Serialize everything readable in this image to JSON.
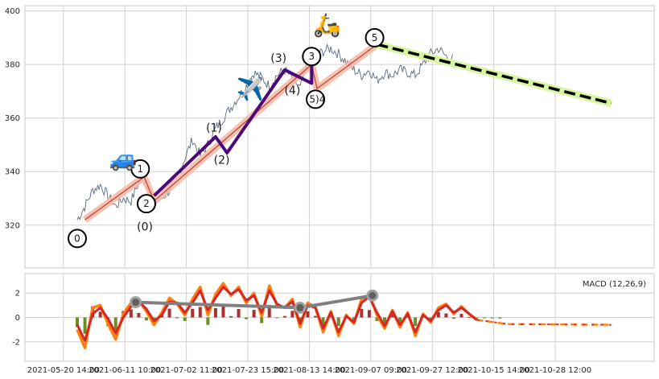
{
  "chart_data": [
    {
      "type": "line",
      "title": "",
      "xlabel": "",
      "ylabel": "",
      "ylim": [
        304,
        402
      ],
      "yticks": [
        320,
        340,
        360,
        380,
        400
      ],
      "grid": true,
      "price": [
        [
          0,
          322
        ],
        [
          1,
          327
        ],
        [
          2,
          333
        ],
        [
          3,
          335
        ],
        [
          4,
          331
        ],
        [
          5,
          327
        ],
        [
          6,
          330
        ],
        [
          7,
          329
        ],
        [
          8,
          336
        ],
        [
          9,
          337
        ],
        [
          10,
          328
        ],
        [
          11,
          330
        ],
        [
          12,
          333
        ],
        [
          13,
          338
        ],
        [
          14,
          345
        ],
        [
          15,
          352
        ],
        [
          16,
          346
        ],
        [
          17,
          350
        ],
        [
          18,
          356
        ],
        [
          19,
          360
        ],
        [
          20,
          364
        ],
        [
          21,
          368
        ],
        [
          22,
          372
        ],
        [
          23,
          377
        ],
        [
          24,
          375
        ],
        [
          25,
          372
        ],
        [
          26,
          376
        ],
        [
          27,
          378
        ],
        [
          28,
          375
        ],
        [
          29,
          371
        ],
        [
          30,
          380
        ],
        [
          31,
          383
        ],
        [
          32,
          385
        ],
        [
          33,
          386
        ],
        [
          34,
          384
        ],
        [
          35,
          381
        ],
        [
          36,
          378
        ],
        [
          37,
          376
        ],
        [
          38,
          378
        ],
        [
          39,
          374
        ],
        [
          40,
          377
        ],
        [
          41,
          376
        ],
        [
          42,
          378
        ],
        [
          43,
          377
        ],
        [
          44,
          376
        ],
        [
          45,
          380
        ],
        [
          46,
          384
        ],
        [
          47,
          386
        ],
        [
          48,
          383
        ],
        [
          49,
          382
        ]
      ],
      "wave_points": [
        {
          "label": "0",
          "x": 1.0,
          "y": 322
        },
        {
          "label": "1",
          "x": 8.7,
          "y": 338
        },
        {
          "label": "2",
          "x": 10.0,
          "y": 329
        },
        {
          "label": "3",
          "x": 30.5,
          "y": 380
        },
        {
          "label": "4",
          "x": 31.2,
          "y": 371
        },
        {
          "label": "5",
          "x": 39.0,
          "y": 387.5
        }
      ],
      "wave_circle_labels": [
        {
          "label": "0",
          "x": 0.0,
          "y": 315
        },
        {
          "label": "1",
          "x": 8.2,
          "y": 341
        },
        {
          "label": "2",
          "x": 9.0,
          "y": 328
        },
        {
          "label": "3",
          "x": 30.5,
          "y": 383
        },
        {
          "label": "(5)4",
          "x": 31.0,
          "y": 367
        },
        {
          "label": "5",
          "x": 38.7,
          "y": 390
        }
      ],
      "subwave_path": [
        [
          10.0,
          331
        ],
        [
          18.0,
          353
        ],
        [
          19.5,
          347
        ],
        [
          27.0,
          378
        ],
        [
          30.5,
          373
        ],
        [
          30.5,
          380
        ]
      ],
      "subwave_labels": [
        {
          "label": "(0)",
          "x": 8.8,
          "y": 318
        },
        {
          "label": "(1)",
          "x": 17.8,
          "y": 355
        },
        {
          "label": "(2)",
          "x": 18.8,
          "y": 343
        },
        {
          "label": "(3)",
          "x": 26.2,
          "y": 381
        },
        {
          "label": "(4)",
          "x": 28.0,
          "y": 369
        }
      ],
      "forecast_line": [
        [
          39.0,
          387.5
        ],
        [
          69.5,
          365.5
        ]
      ],
      "icons": [
        {
          "name": "car-icon",
          "glyph": "🚙",
          "x": 6.0,
          "y": 342
        },
        {
          "name": "airplane-icon",
          "glyph": "✈️",
          "x": 22.5,
          "y": 368
        },
        {
          "name": "scooter-icon",
          "glyph": "🛵",
          "x": 32.5,
          "y": 392
        }
      ]
    },
    {
      "type": "line",
      "title": "",
      "legend": "MACD (12,26,9)",
      "legend_placement": "top-right",
      "ylim": [
        -3.6,
        3.6
      ],
      "yticks": [
        -2,
        0,
        2
      ],
      "grid": true,
      "macd": [
        [
          0,
          -1.0
        ],
        [
          1,
          -2.5
        ],
        [
          2,
          0.8
        ],
        [
          3,
          1.0
        ],
        [
          4,
          -0.5
        ],
        [
          5,
          -1.8
        ],
        [
          6,
          0.3
        ],
        [
          7,
          1.2
        ],
        [
          8,
          1.4
        ],
        [
          9,
          0.5
        ],
        [
          10,
          -0.6
        ],
        [
          11,
          0.4
        ],
        [
          12,
          1.6
        ],
        [
          13,
          1.1
        ],
        [
          14,
          0.2
        ],
        [
          15,
          1.5
        ],
        [
          16,
          2.5
        ],
        [
          17,
          0.2
        ],
        [
          18,
          1.9
        ],
        [
          19,
          2.8
        ],
        [
          20,
          1.8
        ],
        [
          21,
          2.5
        ],
        [
          22,
          1.2
        ],
        [
          23,
          2.0
        ],
        [
          24,
          0.1
        ],
        [
          25,
          2.6
        ],
        [
          26,
          1.0
        ],
        [
          27,
          0.8
        ],
        [
          28,
          1.5
        ],
        [
          29,
          -0.8
        ],
        [
          30,
          1.2
        ],
        [
          31,
          0.8
        ],
        [
          32,
          -1.2
        ],
        [
          33,
          0.5
        ],
        [
          34,
          -1.5
        ],
        [
          35,
          0.2
        ],
        [
          36,
          -0.5
        ],
        [
          37,
          1.5
        ],
        [
          38,
          1.9
        ],
        [
          39,
          0.2
        ],
        [
          40,
          -0.9
        ],
        [
          41,
          0.6
        ],
        [
          42,
          -0.8
        ],
        [
          43,
          0.4
        ],
        [
          44,
          -1.5
        ],
        [
          45,
          0.3
        ],
        [
          46,
          -0.4
        ],
        [
          47,
          0.8
        ],
        [
          48,
          1.1
        ],
        [
          49,
          0.3
        ],
        [
          50,
          0.9
        ],
        [
          51,
          0.3
        ],
        [
          52,
          -0.2
        ],
        [
          53,
          -0.4
        ],
        [
          54,
          -0.5
        ],
        [
          55,
          -0.6
        ]
      ],
      "signal": [
        [
          0,
          -0.6
        ],
        [
          1,
          -1.9
        ],
        [
          2,
          0.3
        ],
        [
          3,
          0.8
        ],
        [
          4,
          -0.1
        ],
        [
          5,
          -1.3
        ],
        [
          6,
          0.0
        ],
        [
          7,
          0.9
        ],
        [
          8,
          1.3
        ],
        [
          9,
          0.7
        ],
        [
          10,
          -0.3
        ],
        [
          11,
          0.2
        ],
        [
          12,
          1.3
        ],
        [
          13,
          1.2
        ],
        [
          14,
          0.4
        ],
        [
          15,
          1.2
        ],
        [
          16,
          2.2
        ],
        [
          17,
          0.6
        ],
        [
          18,
          1.6
        ],
        [
          19,
          2.5
        ],
        [
          20,
          1.9
        ],
        [
          21,
          2.3
        ],
        [
          22,
          1.4
        ],
        [
          23,
          1.8
        ],
        [
          24,
          0.4
        ],
        [
          25,
          2.2
        ],
        [
          26,
          1.1
        ],
        [
          27,
          0.8
        ],
        [
          28,
          1.3
        ],
        [
          29,
          -0.5
        ],
        [
          30,
          1.0
        ],
        [
          31,
          0.8
        ],
        [
          32,
          -0.9
        ],
        [
          33,
          0.4
        ],
        [
          34,
          -1.2
        ],
        [
          35,
          0.1
        ],
        [
          36,
          -0.4
        ],
        [
          37,
          1.2
        ],
        [
          38,
          1.7
        ],
        [
          39,
          0.4
        ],
        [
          40,
          -0.7
        ],
        [
          41,
          0.5
        ],
        [
          42,
          -0.6
        ],
        [
          43,
          0.3
        ],
        [
          44,
          -1.2
        ],
        [
          45,
          0.2
        ],
        [
          46,
          -0.3
        ],
        [
          47,
          0.6
        ],
        [
          48,
          1.0
        ],
        [
          49,
          0.4
        ],
        [
          50,
          0.8
        ],
        [
          51,
          0.3
        ],
        [
          52,
          -0.2
        ],
        [
          53,
          -0.4
        ],
        [
          54,
          -0.5
        ],
        [
          55,
          -0.6
        ]
      ],
      "macd_forecast_dashed": [
        [
          52,
          -0.2
        ],
        [
          56,
          -0.55
        ],
        [
          69.5,
          -0.6
        ]
      ],
      "divergence_line": [
        [
          7.6,
          1.25
        ],
        [
          29.0,
          0.8
        ],
        [
          38.4,
          1.8
        ]
      ],
      "xticks": [
        {
          "x": -1.8,
          "label": "2021-05-20 14:00"
        },
        {
          "x": 6.2,
          "label": "2021-06-11 10:00"
        },
        {
          "x": 14.2,
          "label": "2021-07-02 11:00"
        },
        {
          "x": 22.2,
          "label": "2021-07-23 15:00"
        },
        {
          "x": 30.2,
          "label": "2021-08-13 14:00"
        },
        {
          "x": 38.2,
          "label": "2021-09-07 09:00"
        },
        {
          "x": 46.2,
          "label": "2021-09-27 12:00"
        },
        {
          "x": 54.2,
          "label": "2021-10-15 14:00"
        },
        {
          "x": 62.2,
          "label": "2021-10-28 12:00"
        }
      ]
    }
  ],
  "colors": {
    "price": "#5a6a7e",
    "wave_band": "#f4b9a4",
    "wave_line": "#c0392b",
    "subwave": "#4b0a7a",
    "forecast_band": "#d6f5a0",
    "forecast_line": "#000000",
    "macd": "#ff7f0e",
    "signal": "#d62728",
    "divergence": "#808080",
    "hist_pos": "#a83232",
    "hist_neg": "#6b8e23",
    "grid": "#d0d0d0"
  }
}
